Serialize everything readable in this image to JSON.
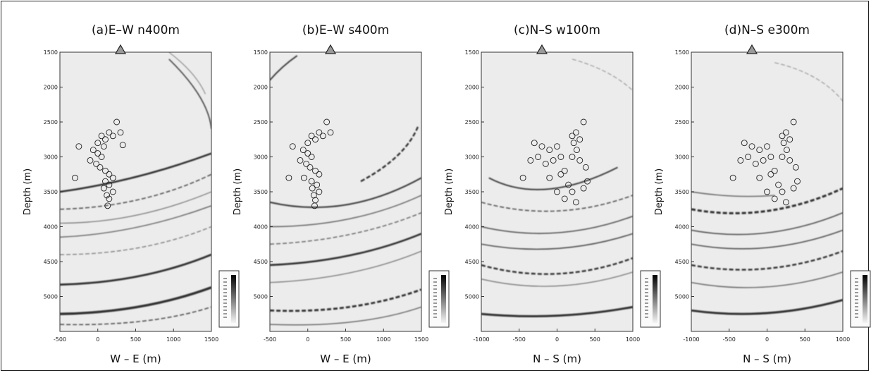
{
  "panels": [
    {
      "id": "a",
      "title": "(a)E–W n400m",
      "xlabel": "W – E (m)",
      "ylabel": "Depth (m)",
      "xlim": [
        -500,
        1500
      ],
      "ylim": [
        1500,
        5500
      ],
      "xticks": [
        "-500",
        "0",
        "500",
        "1000",
        "1500"
      ],
      "yticks": [
        "1500",
        "2000",
        "2500",
        "3000",
        "3500",
        "4000",
        "4500",
        "5000"
      ]
    },
    {
      "id": "b",
      "title": "(b)E–W s400m",
      "xlabel": "W – E (m)",
      "ylabel": "Depth (m)",
      "xlim": [
        -500,
        1500
      ],
      "ylim": [
        1500,
        5500
      ],
      "xticks": [
        "-500",
        "0",
        "500",
        "1000",
        "1500"
      ],
      "yticks": [
        "1500",
        "2000",
        "2500",
        "3000",
        "3500",
        "4000",
        "4500",
        "5000"
      ]
    },
    {
      "id": "c",
      "title": "(c)N–S w100m",
      "xlabel": "N – S (m)",
      "ylabel": "Depth (m)",
      "xlim": [
        -1000,
        1000
      ],
      "ylim": [
        1500,
        5500
      ],
      "xticks": [
        "-1000",
        "-500",
        "0",
        "500",
        "1000"
      ],
      "yticks": [
        "1500",
        "2000",
        "2500",
        "3000",
        "3500",
        "4000",
        "4500",
        "5000"
      ]
    },
    {
      "id": "d",
      "title": "(d)N–S e300m",
      "xlabel": "N – S (m)",
      "ylabel": "Depth (m)",
      "xlim": [
        -1000,
        1000
      ],
      "ylim": [
        1500,
        5500
      ],
      "xticks": [
        "-1000",
        "-500",
        "0",
        "500",
        "1000"
      ],
      "yticks": [
        "1500",
        "2000",
        "2500",
        "3000",
        "3500",
        "4000",
        "4500",
        "5000"
      ]
    }
  ],
  "chart_data": [
    {
      "type": "heatmap",
      "title": "(a)E–W n400m",
      "xlabel": "W – E (m)",
      "ylabel": "Depth (m)",
      "xlim": [
        -500,
        1500
      ],
      "ylim": [
        1500,
        5500
      ],
      "station_x": 300,
      "events": [
        [
          0,
          2800
        ],
        [
          50,
          2700
        ],
        [
          100,
          2750
        ],
        [
          150,
          2650
        ],
        [
          200,
          2700
        ],
        [
          250,
          2500
        ],
        [
          300,
          2650
        ],
        [
          330,
          2830
        ],
        [
          -60,
          2900
        ],
        [
          0,
          2950
        ],
        [
          50,
          3000
        ],
        [
          80,
          2850
        ],
        [
          -100,
          3050
        ],
        [
          -20,
          3100
        ],
        [
          30,
          3150
        ],
        [
          100,
          3200
        ],
        [
          150,
          3250
        ],
        [
          200,
          3300
        ],
        [
          100,
          3350
        ],
        [
          150,
          3400
        ],
        [
          80,
          3450
        ],
        [
          200,
          3500
        ],
        [
          120,
          3550
        ],
        [
          150,
          3600
        ],
        [
          130,
          3700
        ],
        [
          -300,
          3300
        ],
        [
          -250,
          2850
        ]
      ]
    },
    {
      "type": "heatmap",
      "title": "(b)E–W s400m",
      "xlabel": "W – E (m)",
      "ylabel": "Depth (m)",
      "xlim": [
        -500,
        1500
      ],
      "ylim": [
        1500,
        5500
      ],
      "station_x": 300,
      "events": [
        [
          0,
          2800
        ],
        [
          50,
          2700
        ],
        [
          100,
          2750
        ],
        [
          150,
          2650
        ],
        [
          200,
          2700
        ],
        [
          250,
          2500
        ],
        [
          300,
          2650
        ],
        [
          -60,
          2900
        ],
        [
          0,
          2950
        ],
        [
          50,
          3000
        ],
        [
          -100,
          3050
        ],
        [
          -20,
          3100
        ],
        [
          30,
          3150
        ],
        [
          100,
          3200
        ],
        [
          150,
          3250
        ],
        [
          -50,
          3300
        ],
        [
          50,
          3350
        ],
        [
          120,
          3400
        ],
        [
          60,
          3450
        ],
        [
          150,
          3500
        ],
        [
          80,
          3550
        ],
        [
          100,
          3620
        ],
        [
          90,
          3700
        ],
        [
          -250,
          3300
        ],
        [
          -200,
          2850
        ]
      ]
    },
    {
      "type": "heatmap",
      "title": "(c)N–S w100m",
      "xlabel": "N – S (m)",
      "ylabel": "Depth (m)",
      "xlim": [
        -1000,
        1000
      ],
      "ylim": [
        1500,
        5500
      ],
      "station_x": -200,
      "events": [
        [
          -300,
          2800
        ],
        [
          -200,
          2850
        ],
        [
          -100,
          2900
        ],
        [
          0,
          2850
        ],
        [
          -250,
          3000
        ],
        [
          -350,
          3050
        ],
        [
          -150,
          3100
        ],
        [
          -50,
          3050
        ],
        [
          50,
          3000
        ],
        [
          200,
          2700
        ],
        [
          250,
          2650
        ],
        [
          220,
          2800
        ],
        [
          260,
          2900
        ],
        [
          300,
          2750
        ],
        [
          350,
          2500
        ],
        [
          200,
          3000
        ],
        [
          300,
          3050
        ],
        [
          100,
          3200
        ],
        [
          50,
          3250
        ],
        [
          -100,
          3300
        ],
        [
          150,
          3400
        ],
        [
          0,
          3500
        ],
        [
          200,
          3500
        ],
        [
          100,
          3600
        ],
        [
          250,
          3650
        ],
        [
          350,
          3450
        ],
        [
          400,
          3350
        ],
        [
          -450,
          3300
        ],
        [
          380,
          3150
        ]
      ]
    },
    {
      "type": "heatmap",
      "title": "(d)N–S e300m",
      "xlabel": "N – S (m)",
      "ylabel": "Depth (m)",
      "xlim": [
        -1000,
        1000
      ],
      "ylim": [
        1500,
        5500
      ],
      "station_x": -200,
      "events": [
        [
          -300,
          2800
        ],
        [
          -200,
          2850
        ],
        [
          -100,
          2900
        ],
        [
          0,
          2850
        ],
        [
          -250,
          3000
        ],
        [
          -350,
          3050
        ],
        [
          -150,
          3100
        ],
        [
          -50,
          3050
        ],
        [
          50,
          3000
        ],
        [
          200,
          2700
        ],
        [
          250,
          2650
        ],
        [
          220,
          2800
        ],
        [
          260,
          2900
        ],
        [
          300,
          2750
        ],
        [
          350,
          2500
        ],
        [
          200,
          3000
        ],
        [
          300,
          3050
        ],
        [
          100,
          3200
        ],
        [
          50,
          3250
        ],
        [
          -100,
          3300
        ],
        [
          150,
          3400
        ],
        [
          0,
          3500
        ],
        [
          200,
          3500
        ],
        [
          100,
          3600
        ],
        [
          250,
          3650
        ],
        [
          350,
          3450
        ],
        [
          400,
          3350
        ],
        [
          -450,
          3300
        ],
        [
          380,
          3150
        ]
      ]
    }
  ]
}
